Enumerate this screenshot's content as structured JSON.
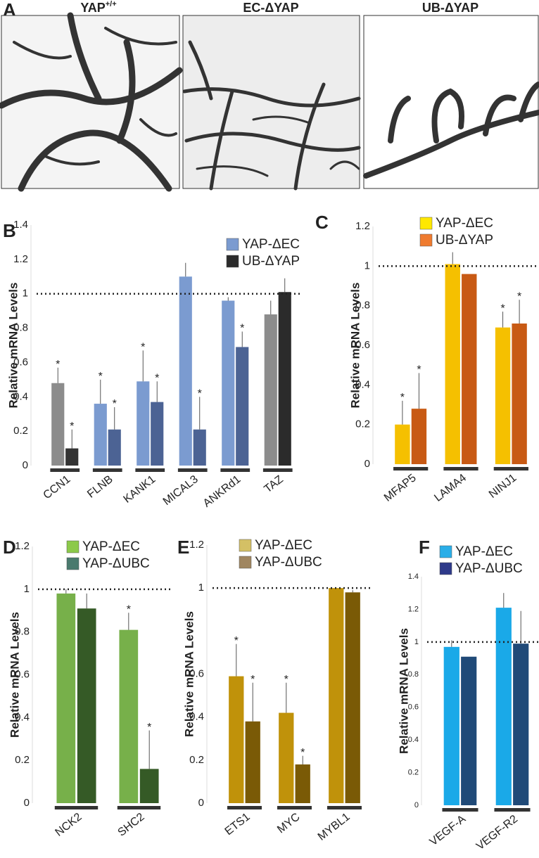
{
  "image_panels": {
    "label": "A",
    "panels": [
      {
        "title": "YAP",
        "superscript": "+/+"
      },
      {
        "title": "EC-ΔYAP"
      },
      {
        "title": "UB-ΔYAP"
      }
    ]
  },
  "chart_data": [
    {
      "type": "bar",
      "panel_label": "B",
      "ylabel": "Relative mRNA Levels",
      "reference_line": 1,
      "categories": [
        "CCN1",
        "FLNB",
        "KANK1",
        "MICAL3",
        "ANKRd1",
        "TAZ"
      ],
      "ylim": [
        0,
        1.4
      ],
      "yticks": [
        0,
        0.2,
        0.4,
        0.6,
        0.8,
        1,
        1.2,
        1.4
      ],
      "series": [
        {
          "name": "YAP-ΔEC",
          "color": "#7b9bd0",
          "bar_colors": [
            "#8c8c8c",
            "#7b9bd0",
            "#7b9bd0",
            "#7b9bd0",
            "#7b9bd0",
            "#8c8c8c"
          ],
          "values": [
            0.48,
            0.36,
            0.49,
            1.1,
            0.96,
            0.88
          ],
          "errors": [
            0.09,
            0.14,
            0.18,
            0.08,
            0.02,
            0.08
          ],
          "significance": [
            "*",
            "*",
            "*",
            null,
            null,
            null
          ]
        },
        {
          "name": "UB-ΔYAP",
          "color": "#2b2b2b",
          "bar_colors": [
            "#333333",
            "#4c6394",
            "#4c6394",
            "#4c6394",
            "#4c6394",
            "#2b2b2b"
          ],
          "values": [
            0.1,
            0.21,
            0.37,
            0.21,
            0.69,
            1.01
          ],
          "errors": [
            0.11,
            0.13,
            0.12,
            0.19,
            0.09,
            0.08
          ],
          "significance": [
            "*",
            "*",
            "*",
            "*",
            "*",
            null
          ]
        }
      ]
    },
    {
      "type": "bar",
      "panel_label": "C",
      "ylabel": "Relative mRNA Levels",
      "reference_line": 1,
      "categories": [
        "MFAP5",
        "LAMA4",
        "NINJ1"
      ],
      "ylim": [
        0,
        1.2
      ],
      "yticks": [
        0,
        0.2,
        0.4,
        0.6,
        0.8,
        1,
        1.2
      ],
      "series": [
        {
          "name": "YAP-ΔEC",
          "color": "#ffe800",
          "bar_colors": [
            "#f5c000",
            "#f5c000",
            "#f5c000"
          ],
          "values": [
            0.2,
            1.01,
            0.69
          ],
          "errors": [
            0.12,
            0.06,
            0.08
          ],
          "significance": [
            "*",
            null,
            "*"
          ]
        },
        {
          "name": "UB-ΔYAP",
          "color": "#ef7b2f",
          "bar_colors": [
            "#c85a14",
            "#c85a14",
            "#c85a14"
          ],
          "values": [
            0.28,
            0.96,
            0.71
          ],
          "errors": [
            0.18,
            0,
            0.12
          ],
          "significance": [
            "*",
            null,
            "*"
          ]
        }
      ]
    },
    {
      "type": "bar",
      "panel_label": "D",
      "ylabel": "Relative mRNA Levels",
      "reference_line": 1,
      "categories": [
        "NCK2",
        "SHC2"
      ],
      "ylim": [
        0,
        1.2
      ],
      "yticks": [
        0,
        0.2,
        0.4,
        0.6,
        0.8,
        1,
        1.2
      ],
      "series": [
        {
          "name": "YAP-ΔEC",
          "color": "#8cc94a",
          "bar_colors": [
            "#77b04a",
            "#77b04a"
          ],
          "values": [
            0.98,
            0.81
          ],
          "errors": [
            0.02,
            0.08
          ],
          "significance": [
            null,
            "*"
          ]
        },
        {
          "name": "YAP-ΔUBC",
          "color": "#4a7a6e",
          "bar_colors": [
            "#355a26",
            "#355a26"
          ],
          "values": [
            0.91,
            0.16
          ],
          "errors": [
            0.07,
            0.18
          ],
          "significance": [
            null,
            "*"
          ]
        }
      ]
    },
    {
      "type": "bar",
      "panel_label": "E",
      "ylabel": "Relative mRNA Levels",
      "reference_line": 1,
      "categories": [
        "ETS1",
        "MYC",
        "MYBL1"
      ],
      "ylim": [
        0,
        1.2
      ],
      "yticks": [
        0,
        0.2,
        0.4,
        0.6,
        1,
        1.2
      ],
      "series": [
        {
          "name": "YAP-ΔEC",
          "color": "#d4c065",
          "bar_colors": [
            "#c0920a",
            "#c0920a",
            "#c0920a"
          ],
          "values": [
            0.59,
            0.42,
            1
          ],
          "errors": [
            0.15,
            0.14,
            0
          ],
          "significance": [
            "*",
            "*",
            null
          ]
        },
        {
          "name": "YAP-ΔUBC",
          "color": "#a08660",
          "bar_colors": [
            "#7a5a06",
            "#7a5a06",
            "#7a5a06"
          ],
          "values": [
            0.38,
            0.18,
            0.98
          ],
          "errors": [
            0.18,
            0.04,
            0.01
          ],
          "significance": [
            "*",
            "*",
            null
          ]
        }
      ]
    },
    {
      "type": "bar",
      "panel_label": "F",
      "ylabel": "Relative mRNA Levels",
      "reference_line": 1,
      "categories": [
        "VEGF-A",
        "VEGF-R2"
      ],
      "ylim": [
        0,
        1.4
      ],
      "yticks": [
        0,
        0.2,
        0.4,
        0.6,
        0.8,
        1,
        1.2,
        1.4
      ],
      "series": [
        {
          "name": "YAP-ΔEC",
          "color": "#2aaee8",
          "bar_colors": [
            "#1aa9e8",
            "#1aa9e8"
          ],
          "values": [
            0.97,
            1.21
          ],
          "errors": [
            0.04,
            0.09
          ],
          "significance": [
            null,
            null
          ]
        },
        {
          "name": "YAP-ΔUBC",
          "color": "#2e3a8a",
          "bar_colors": [
            "#204a78",
            "#204a78"
          ],
          "values": [
            0.91,
            0.99
          ],
          "errors": [
            0,
            0.2
          ],
          "significance": [
            null,
            null
          ]
        }
      ]
    }
  ]
}
